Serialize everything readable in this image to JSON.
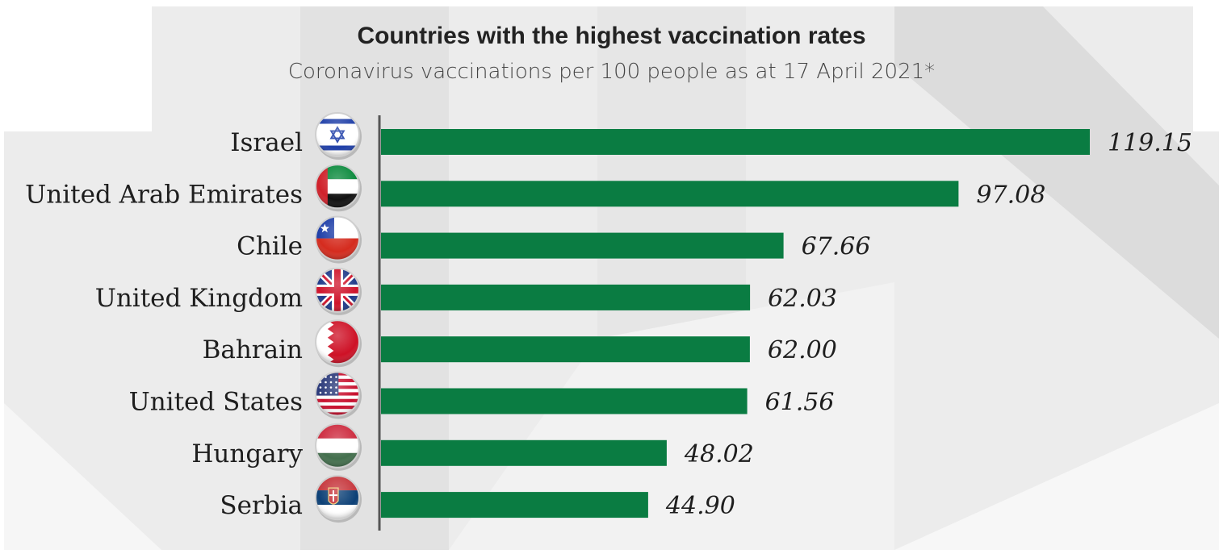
{
  "chart_data": {
    "type": "bar",
    "orientation": "horizontal",
    "title": "Countries with the highest vaccination rates",
    "subtitle": "Coronavirus vaccinations per 100 people as at 17 April 2021*",
    "categories": [
      "Israel",
      "United Arab Emirates",
      "Chile",
      "United Kingdom",
      "Bahrain",
      "United States",
      "Hungary",
      "Serbia"
    ],
    "values": [
      119.15,
      97.08,
      67.66,
      62.03,
      62.0,
      61.56,
      48.02,
      44.9
    ],
    "value_labels": [
      "119.15",
      "97.08",
      "67.66",
      "62.03",
      "62.00",
      "61.56",
      "48.02",
      "44.90"
    ],
    "flags": [
      "israel-flag-icon",
      "uae-flag-icon",
      "chile-flag-icon",
      "uk-flag-icon",
      "bahrain-flag-icon",
      "usa-flag-icon",
      "hungary-flag-icon",
      "serbia-flag-icon"
    ],
    "xlim": [
      0,
      119.15
    ],
    "bar_color": "#0a7c42",
    "grid": false,
    "legend": "none"
  }
}
